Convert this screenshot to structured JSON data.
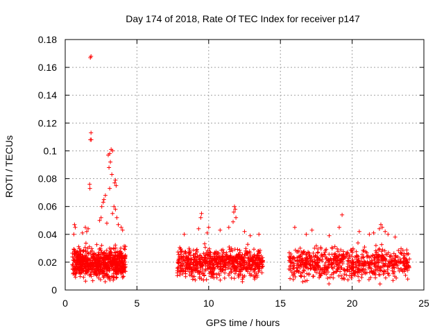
{
  "chart_data": {
    "type": "scatter",
    "title": "Day 174 of 2018, Rate Of TEC Index for receiver p147",
    "xlabel": "GPS time / hours",
    "ylabel": "ROTI / TECUs",
    "xlim": [
      0,
      25
    ],
    "ylim": [
      0,
      0.18
    ],
    "x_ticks": [
      0,
      5,
      10,
      15,
      20,
      25
    ],
    "x_tick_labels": [
      "0",
      "5",
      "10",
      "15",
      "20",
      "25"
    ],
    "y_ticks": [
      0,
      0.02,
      0.04,
      0.06,
      0.08,
      0.1,
      0.12,
      0.14,
      0.16,
      0.18
    ],
    "y_tick_labels": [
      "0",
      "0.02",
      "0.04",
      "0.06",
      "0.08",
      "0.1",
      "0.12",
      "0.14",
      "0.16",
      "0.18"
    ],
    "grid": true,
    "marker": "plus",
    "color": "#ff0000",
    "segments": [
      {
        "x_start": 0.5,
        "x_end": 4.2,
        "y_min": 0.004,
        "y_max": 0.035
      },
      {
        "x_start": 7.8,
        "x_end": 13.8,
        "y_min": 0.004,
        "y_max": 0.035
      },
      {
        "x_start": 15.6,
        "x_end": 24.0,
        "y_min": 0.003,
        "y_max": 0.035
      }
    ],
    "peaks": [
      {
        "x": 1.75,
        "y": 0.167
      },
      {
        "x": 1.8,
        "y": 0.168
      },
      {
        "x": 1.8,
        "y": 0.113
      },
      {
        "x": 1.75,
        "y": 0.108
      },
      {
        "x": 1.82,
        "y": 0.108
      },
      {
        "x": 1.7,
        "y": 0.076
      },
      {
        "x": 1.72,
        "y": 0.073
      },
      {
        "x": 3.2,
        "y": 0.101
      },
      {
        "x": 3.3,
        "y": 0.1
      },
      {
        "x": 3.1,
        "y": 0.098
      },
      {
        "x": 3.0,
        "y": 0.097
      },
      {
        "x": 3.15,
        "y": 0.092
      },
      {
        "x": 3.05,
        "y": 0.088
      },
      {
        "x": 3.25,
        "y": 0.083
      },
      {
        "x": 3.5,
        "y": 0.079
      },
      {
        "x": 3.45,
        "y": 0.077
      },
      {
        "x": 3.55,
        "y": 0.075
      },
      {
        "x": 3.1,
        "y": 0.073
      },
      {
        "x": 2.8,
        "y": 0.068
      },
      {
        "x": 2.7,
        "y": 0.065
      },
      {
        "x": 2.65,
        "y": 0.063
      },
      {
        "x": 2.55,
        "y": 0.06
      },
      {
        "x": 3.4,
        "y": 0.06
      },
      {
        "x": 3.5,
        "y": 0.058
      },
      {
        "x": 3.3,
        "y": 0.055
      },
      {
        "x": 2.5,
        "y": 0.052
      },
      {
        "x": 2.4,
        "y": 0.05
      },
      {
        "x": 3.6,
        "y": 0.052
      },
      {
        "x": 0.65,
        "y": 0.047
      },
      {
        "x": 0.7,
        "y": 0.045
      },
      {
        "x": 1.4,
        "y": 0.045
      },
      {
        "x": 1.6,
        "y": 0.044
      },
      {
        "x": 1.5,
        "y": 0.042
      },
      {
        "x": 0.6,
        "y": 0.04
      },
      {
        "x": 1.2,
        "y": 0.041
      },
      {
        "x": 2.9,
        "y": 0.048
      },
      {
        "x": 3.7,
        "y": 0.047
      },
      {
        "x": 3.9,
        "y": 0.045
      },
      {
        "x": 4.0,
        "y": 0.043
      },
      {
        "x": 9.5,
        "y": 0.055
      },
      {
        "x": 9.45,
        "y": 0.052
      },
      {
        "x": 11.8,
        "y": 0.06
      },
      {
        "x": 11.85,
        "y": 0.058
      },
      {
        "x": 11.75,
        "y": 0.056
      },
      {
        "x": 11.9,
        "y": 0.052
      },
      {
        "x": 11.7,
        "y": 0.049
      },
      {
        "x": 10.0,
        "y": 0.045
      },
      {
        "x": 9.3,
        "y": 0.044
      },
      {
        "x": 11.4,
        "y": 0.045
      },
      {
        "x": 12.5,
        "y": 0.042
      },
      {
        "x": 10.8,
        "y": 0.043
      },
      {
        "x": 13.5,
        "y": 0.04
      },
      {
        "x": 8.3,
        "y": 0.04
      },
      {
        "x": 9.9,
        "y": 0.041
      },
      {
        "x": 12.9,
        "y": 0.039
      },
      {
        "x": 19.3,
        "y": 0.054
      },
      {
        "x": 22.0,
        "y": 0.047
      },
      {
        "x": 22.1,
        "y": 0.045
      },
      {
        "x": 21.9,
        "y": 0.044
      },
      {
        "x": 16.0,
        "y": 0.045
      },
      {
        "x": 17.2,
        "y": 0.043
      },
      {
        "x": 19.1,
        "y": 0.045
      },
      {
        "x": 20.5,
        "y": 0.042
      },
      {
        "x": 21.2,
        "y": 0.04
      },
      {
        "x": 22.3,
        "y": 0.042
      },
      {
        "x": 22.5,
        "y": 0.04
      },
      {
        "x": 16.8,
        "y": 0.04
      },
      {
        "x": 18.4,
        "y": 0.039
      },
      {
        "x": 23.0,
        "y": 0.038
      },
      {
        "x": 21.5,
        "y": 0.041
      }
    ],
    "point_count_per_segment": 700
  }
}
